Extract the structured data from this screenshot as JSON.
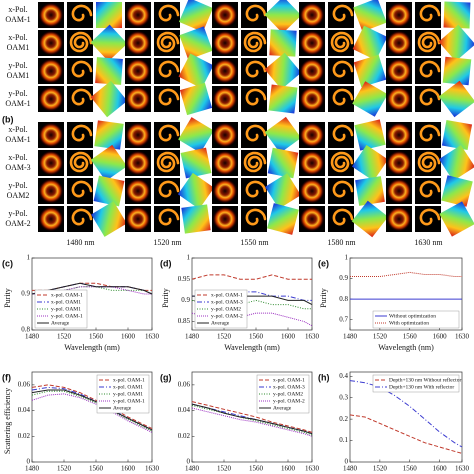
{
  "figure_top": {
    "panel": "(b)",
    "rows_a": [
      {
        "pol": "x-Pol.",
        "mode": "OAM-1"
      },
      {
        "pol": "x-Pol.",
        "mode": "OAM1"
      },
      {
        "pol": "y-Pol.",
        "mode": "OAM1"
      },
      {
        "pol": "y-Pol.",
        "mode": "OAM-1"
      }
    ],
    "rows_b": [
      {
        "pol": "x-Pol.",
        "mode": "OAM-1"
      },
      {
        "pol": "x-Pol.",
        "mode": "OAM-3"
      },
      {
        "pol": "y-Pol.",
        "mode": "OAM2"
      },
      {
        "pol": "y-Pol.",
        "mode": "OAM-2"
      }
    ],
    "wavelengths": [
      "1480 nm",
      "1520 nm",
      "1550 nm",
      "1580 nm",
      "1630 nm"
    ]
  },
  "chart_data": [
    {
      "type": "line",
      "panel": "(c)",
      "ylabel": "Purity",
      "xlabel": "Wavelength (nm)",
      "legend": "lower left",
      "x": [
        1480,
        1500,
        1520,
        1540,
        1560,
        1580,
        1600,
        1620,
        1630
      ],
      "xlim": [
        1480,
        1630
      ],
      "xticks": [
        1480,
        1520,
        1560,
        1600,
        1630
      ],
      "ylim": [
        0.8,
        1
      ],
      "yticks": [
        0.8,
        0.9,
        1
      ],
      "series": [
        {
          "name": "x-pol. OAM-1",
          "color": "#c0392b",
          "dash": "4,2",
          "values": [
            0.91,
            0.91,
            0.92,
            0.93,
            0.93,
            0.92,
            0.92,
            0.91,
            0.91
          ]
        },
        {
          "name": "x-pol. OAM1",
          "color": "#3b3bd0",
          "dash": "5,2,1,2",
          "values": [
            0.9,
            0.91,
            0.92,
            0.93,
            0.92,
            0.92,
            0.92,
            0.91,
            0.9
          ]
        },
        {
          "name": "y-pol. OAM1",
          "color": "#2e8b2e",
          "dash": "1,1.5",
          "values": [
            0.9,
            0.9,
            0.91,
            0.92,
            0.92,
            0.91,
            0.91,
            0.91,
            0.9
          ]
        },
        {
          "name": "y-pol. OAM-1",
          "color": "#9b30c0",
          "dash": "1,1",
          "values": [
            0.9,
            0.9,
            0.91,
            0.92,
            0.92,
            0.92,
            0.91,
            0.9,
            0.9
          ]
        },
        {
          "name": "Average",
          "color": "#222222",
          "dash": "none",
          "values": [
            0.9,
            0.91,
            0.92,
            0.93,
            0.92,
            0.92,
            0.92,
            0.91,
            0.9
          ]
        }
      ]
    },
    {
      "type": "line",
      "panel": "(d)",
      "ylabel": "Purity",
      "xlabel": "Wavelength (nm)",
      "legend": "lower left",
      "x": [
        1480,
        1500,
        1520,
        1540,
        1560,
        1580,
        1600,
        1620,
        1630
      ],
      "xlim": [
        1480,
        1630
      ],
      "xticks": [
        1480,
        1520,
        1560,
        1600,
        1630
      ],
      "ylim": [
        0.83,
        1
      ],
      "yticks": [
        0.85,
        0.9,
        0.95,
        1
      ],
      "series": [
        {
          "name": "x-pol. OAM-1",
          "color": "#c0392b",
          "dash": "4,2",
          "values": [
            0.95,
            0.96,
            0.96,
            0.95,
            0.95,
            0.96,
            0.95,
            0.95,
            0.95
          ]
        },
        {
          "name": "x-pol. OAM-3",
          "color": "#3b3bd0",
          "dash": "5,2,1,2",
          "values": [
            0.91,
            0.91,
            0.91,
            0.92,
            0.92,
            0.91,
            0.91,
            0.9,
            0.9
          ]
        },
        {
          "name": "y-pol. OAM2",
          "color": "#2e8b2e",
          "dash": "1,1.5",
          "values": [
            0.9,
            0.89,
            0.89,
            0.89,
            0.9,
            0.89,
            0.89,
            0.88,
            0.88
          ]
        },
        {
          "name": "y-pol. OAM-2",
          "color": "#9b30c0",
          "dash": "1,1",
          "values": [
            0.87,
            0.86,
            0.86,
            0.86,
            0.87,
            0.87,
            0.86,
            0.85,
            0.84
          ]
        },
        {
          "name": "Average",
          "color": "#222222",
          "dash": "none",
          "values": [
            0.91,
            0.91,
            0.9,
            0.91,
            0.91,
            0.91,
            0.9,
            0.9,
            0.89
          ]
        }
      ]
    },
    {
      "type": "line",
      "panel": "(e)",
      "ylabel": "Purity",
      "xlabel": "Wavelength (nm)",
      "legend": "lower right",
      "x": [
        1480,
        1500,
        1520,
        1540,
        1560,
        1580,
        1600,
        1620,
        1630
      ],
      "xlim": [
        1480,
        1630
      ],
      "xticks": [
        1480,
        1520,
        1560,
        1600,
        1630
      ],
      "ylim": [
        0.65,
        1
      ],
      "yticks": [
        0.7,
        0.8,
        0.9,
        1
      ],
      "series": [
        {
          "name": "Without optimization",
          "color": "#3b3bd0",
          "dash": "none",
          "values": [
            0.8,
            0.8,
            0.8,
            0.8,
            0.8,
            0.8,
            0.8,
            0.8,
            0.8
          ]
        },
        {
          "name": "With optimization",
          "color": "#c0392b",
          "dash": "1,1",
          "values": [
            0.91,
            0.91,
            0.91,
            0.92,
            0.93,
            0.92,
            0.92,
            0.91,
            0.91
          ]
        }
      ]
    },
    {
      "type": "line",
      "panel": "(f)",
      "ylabel": "Scattering efficiency",
      "legend": "upper right",
      "x": [
        1480,
        1500,
        1520,
        1540,
        1560,
        1580,
        1600,
        1620,
        1630
      ],
      "xlim": [
        1480,
        1630
      ],
      "xticks": [
        1480,
        1520,
        1560,
        1600,
        1630
      ],
      "ylim": [
        0,
        0.07
      ],
      "yticks": [
        0,
        0.02,
        0.04,
        0.06
      ],
      "series": [
        {
          "name": "x-pol. OAM-1",
          "color": "#c0392b",
          "dash": "4,2",
          "values": [
            0.058,
            0.06,
            0.058,
            0.054,
            0.048,
            0.042,
            0.035,
            0.029,
            0.026
          ]
        },
        {
          "name": "x-pol. OAM1",
          "color": "#3b3bd0",
          "dash": "5,2,1,2",
          "values": [
            0.056,
            0.058,
            0.057,
            0.053,
            0.047,
            0.041,
            0.034,
            0.028,
            0.025
          ]
        },
        {
          "name": "y-pol. OAM1",
          "color": "#2e8b2e",
          "dash": "1,1.5",
          "values": [
            0.052,
            0.055,
            0.055,
            0.051,
            0.046,
            0.04,
            0.033,
            0.027,
            0.024
          ]
        },
        {
          "name": "y-pol. OAM-1",
          "color": "#9b30c0",
          "dash": "1,1",
          "values": [
            0.048,
            0.052,
            0.053,
            0.05,
            0.045,
            0.039,
            0.032,
            0.026,
            0.023
          ]
        },
        {
          "name": "Average",
          "color": "#222222",
          "dash": "none",
          "values": [
            0.054,
            0.056,
            0.056,
            0.052,
            0.047,
            0.04,
            0.034,
            0.028,
            0.025
          ]
        }
      ]
    },
    {
      "type": "line",
      "panel": "(g)",
      "legend": "upper right",
      "x": [
        1480,
        1500,
        1520,
        1540,
        1560,
        1580,
        1600,
        1620,
        1630
      ],
      "xlim": [
        1480,
        1630
      ],
      "xticks": [
        1480,
        1520,
        1560,
        1600,
        1630
      ],
      "ylim": [
        0,
        0.07
      ],
      "yticks": [
        0,
        0.02,
        0.04,
        0.06
      ],
      "series": [
        {
          "name": "x-pol. OAM-1",
          "color": "#c0392b",
          "dash": "4,2",
          "values": [
            0.047,
            0.044,
            0.041,
            0.038,
            0.035,
            0.031,
            0.028,
            0.025,
            0.023
          ]
        },
        {
          "name": "x-pol. OAM-3",
          "color": "#3b3bd0",
          "dash": "5,2,1,2",
          "values": [
            0.045,
            0.042,
            0.039,
            0.036,
            0.033,
            0.03,
            0.027,
            0.024,
            0.022
          ]
        },
        {
          "name": "y-pol. OAM2",
          "color": "#2e8b2e",
          "dash": "1,1.5",
          "values": [
            0.044,
            0.041,
            0.038,
            0.035,
            0.032,
            0.029,
            0.026,
            0.023,
            0.021
          ]
        },
        {
          "name": "y-pol. OAM-2",
          "color": "#9b30c0",
          "dash": "1,1",
          "values": [
            0.042,
            0.039,
            0.036,
            0.033,
            0.031,
            0.028,
            0.025,
            0.022,
            0.02
          ]
        },
        {
          "name": "Average",
          "color": "#222222",
          "dash": "none",
          "values": [
            0.045,
            0.042,
            0.038,
            0.035,
            0.033,
            0.03,
            0.027,
            0.024,
            0.022
          ]
        }
      ]
    },
    {
      "type": "line",
      "panel": "(h)",
      "legend": "upper right",
      "x": [
        1480,
        1500,
        1520,
        1540,
        1560,
        1580,
        1600,
        1620,
        1630
      ],
      "xlim": [
        1480,
        1630
      ],
      "xticks": [
        1480,
        1520,
        1560,
        1600,
        1630
      ],
      "ylim": [
        0,
        0.42
      ],
      "yticks": [
        0,
        0.1,
        0.2,
        0.3,
        0.4
      ],
      "series": [
        {
          "name": "Depth+130 nm Without reflector",
          "color": "#c0392b",
          "dash": "4,2",
          "values": [
            0.22,
            0.21,
            0.18,
            0.15,
            0.12,
            0.09,
            0.07,
            0.05,
            0.04
          ]
        },
        {
          "name": "Depth+130 nm With reflector",
          "color": "#3b3bd0",
          "dash": "5,2,1,2",
          "values": [
            0.38,
            0.37,
            0.35,
            0.31,
            0.26,
            0.2,
            0.14,
            0.09,
            0.07
          ]
        }
      ]
    }
  ]
}
